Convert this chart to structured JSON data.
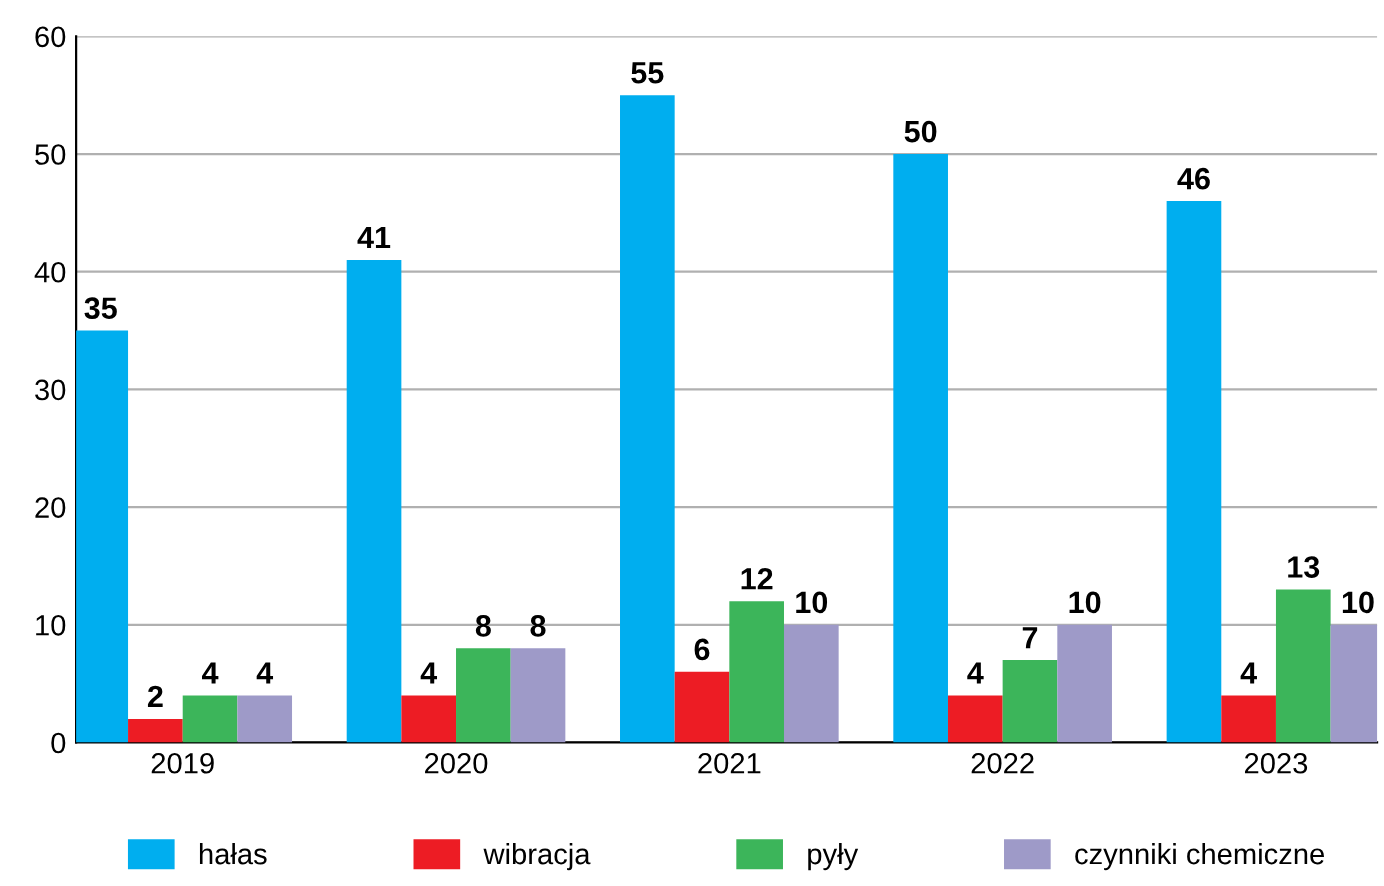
{
  "chart_data": {
    "type": "bar",
    "categories": [
      "2019",
      "2020",
      "2021",
      "2022",
      "2023"
    ],
    "series": [
      {
        "name": "hałas",
        "color": "#00aeef",
        "values": [
          35,
          41,
          55,
          50,
          46
        ]
      },
      {
        "name": "wibracja",
        "color": "#ed1c24",
        "values": [
          2,
          4,
          6,
          4,
          4
        ]
      },
      {
        "name": "pyły",
        "color": "#3cb55a",
        "values": [
          4,
          8,
          12,
          7,
          13
        ]
      },
      {
        "name": "czynniki chemiczne",
        "color": "#9e9ac8",
        "values": [
          4,
          8,
          10,
          10,
          10
        ]
      }
    ],
    "ylim": [
      0,
      60
    ],
    "yticks": [
      0,
      10,
      20,
      30,
      40,
      50,
      60
    ],
    "grid": "y",
    "legend": "bottom",
    "data_labels": true
  }
}
